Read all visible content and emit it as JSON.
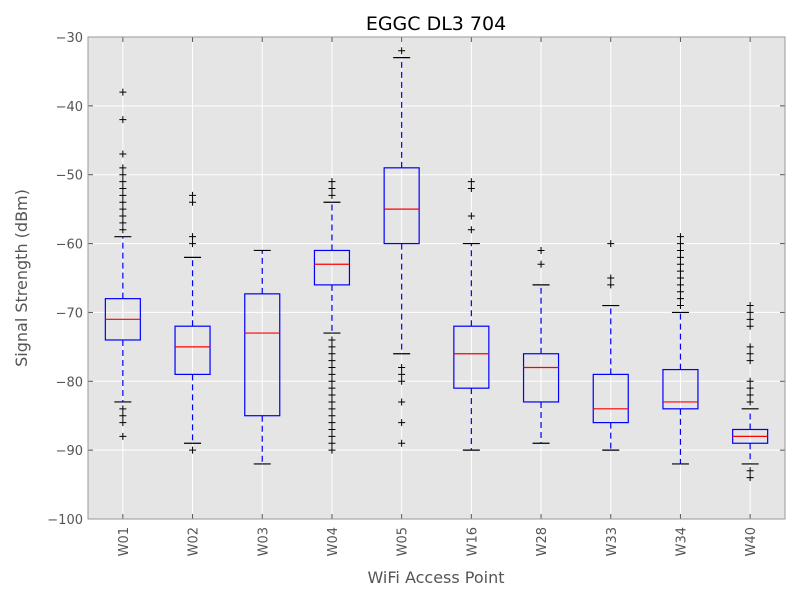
{
  "chart_data": {
    "type": "boxplot",
    "title": "EGGC DL3 704",
    "xlabel": "WiFi Access Point",
    "ylabel": "Signal Strength (dBm)",
    "ylim": [
      -100,
      -30
    ],
    "yticks": [
      -30,
      -40,
      -50,
      -60,
      -70,
      -80,
      -90,
      -100
    ],
    "grid": true,
    "colors": {
      "background": "#e5e5e5",
      "grid": "#ffffff",
      "box": "#0000ff",
      "median": "#ff0000",
      "whisker_cap": "#000000",
      "flier": "#000000"
    },
    "categories": [
      "W01",
      "W02",
      "W03",
      "W04",
      "W05",
      "W16",
      "W28",
      "W33",
      "W34",
      "W40"
    ],
    "boxes": [
      {
        "q1": -74,
        "median": -71,
        "q3": -68,
        "whislo": -83,
        "whishi": -59,
        "fliers": [
          -38,
          -42,
          -47,
          -49,
          -50,
          -51,
          -52,
          -53,
          -54,
          -55,
          -56,
          -57,
          -58,
          -84,
          -85,
          -86,
          -88
        ]
      },
      {
        "q1": -79,
        "median": -75,
        "q3": -72,
        "whislo": -89,
        "whishi": -62,
        "fliers": [
          -53,
          -54,
          -59,
          -60,
          -90
        ]
      },
      {
        "q1": -85,
        "median": -73,
        "q3": -67.3,
        "whislo": -92,
        "whishi": -61,
        "fliers": []
      },
      {
        "q1": -66,
        "median": -63,
        "q3": -61,
        "whislo": -73,
        "whishi": -54,
        "fliers": [
          -51,
          -52,
          -53,
          -74,
          -75,
          -76,
          -77,
          -78,
          -79,
          -80,
          -81,
          -82,
          -83,
          -84,
          -85,
          -86,
          -87,
          -88,
          -89,
          -90
        ]
      },
      {
        "q1": -60,
        "median": -55,
        "q3": -49,
        "whislo": -76,
        "whishi": -33,
        "fliers": [
          -32,
          -78,
          -79,
          -80,
          -83,
          -86,
          -89
        ]
      },
      {
        "q1": -81,
        "median": -76,
        "q3": -72,
        "whislo": -90,
        "whishi": -60,
        "fliers": [
          -51,
          -52,
          -56,
          -58
        ]
      },
      {
        "q1": -83,
        "median": -78,
        "q3": -76,
        "whislo": -89,
        "whishi": -66,
        "fliers": [
          -61,
          -63
        ]
      },
      {
        "q1": -86,
        "median": -84,
        "q3": -79,
        "whislo": -90,
        "whishi": -69,
        "fliers": [
          -60,
          -65,
          -66
        ]
      },
      {
        "q1": -84,
        "median": -83,
        "q3": -78.3,
        "whislo": -92,
        "whishi": -70,
        "fliers": [
          -59,
          -60,
          -61,
          -62,
          -63,
          -64,
          -65,
          -66,
          -67,
          -68,
          -69
        ]
      },
      {
        "q1": -89,
        "median": -88,
        "q3": -87,
        "whislo": -92,
        "whishi": -84,
        "fliers": [
          -69,
          -70,
          -71,
          -72,
          -75,
          -76,
          -77,
          -80,
          -81,
          -82,
          -83,
          -93,
          -94
        ]
      }
    ]
  }
}
